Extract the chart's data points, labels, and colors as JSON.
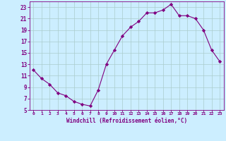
{
  "x": [
    0,
    1,
    2,
    3,
    4,
    5,
    6,
    7,
    8,
    9,
    10,
    11,
    12,
    13,
    14,
    15,
    16,
    17,
    18,
    19,
    20,
    21,
    22,
    23
  ],
  "y": [
    12,
    10.5,
    9.5,
    8,
    7.5,
    6.5,
    6,
    5.7,
    8.5,
    13,
    15.5,
    18,
    19.5,
    20.5,
    22,
    22,
    22.5,
    23.5,
    21.5,
    21.5,
    21,
    19,
    15.5,
    13.5
  ],
  "line_color": "#800080",
  "marker": "D",
  "marker_size": 2.2,
  "bg_color": "#cceeff",
  "grid_color": "#aacccc",
  "xlabel": "Windchill (Refroidissement éolien,°C)",
  "xlabel_color": "#800080",
  "tick_color": "#800080",
  "ylim": [
    5,
    24
  ],
  "xlim": [
    -0.5,
    23.5
  ],
  "yticks": [
    5,
    7,
    9,
    11,
    13,
    15,
    17,
    19,
    21,
    23
  ],
  "xticks": [
    0,
    1,
    2,
    3,
    4,
    5,
    6,
    7,
    8,
    9,
    10,
    11,
    12,
    13,
    14,
    15,
    16,
    17,
    18,
    19,
    20,
    21,
    22,
    23
  ]
}
